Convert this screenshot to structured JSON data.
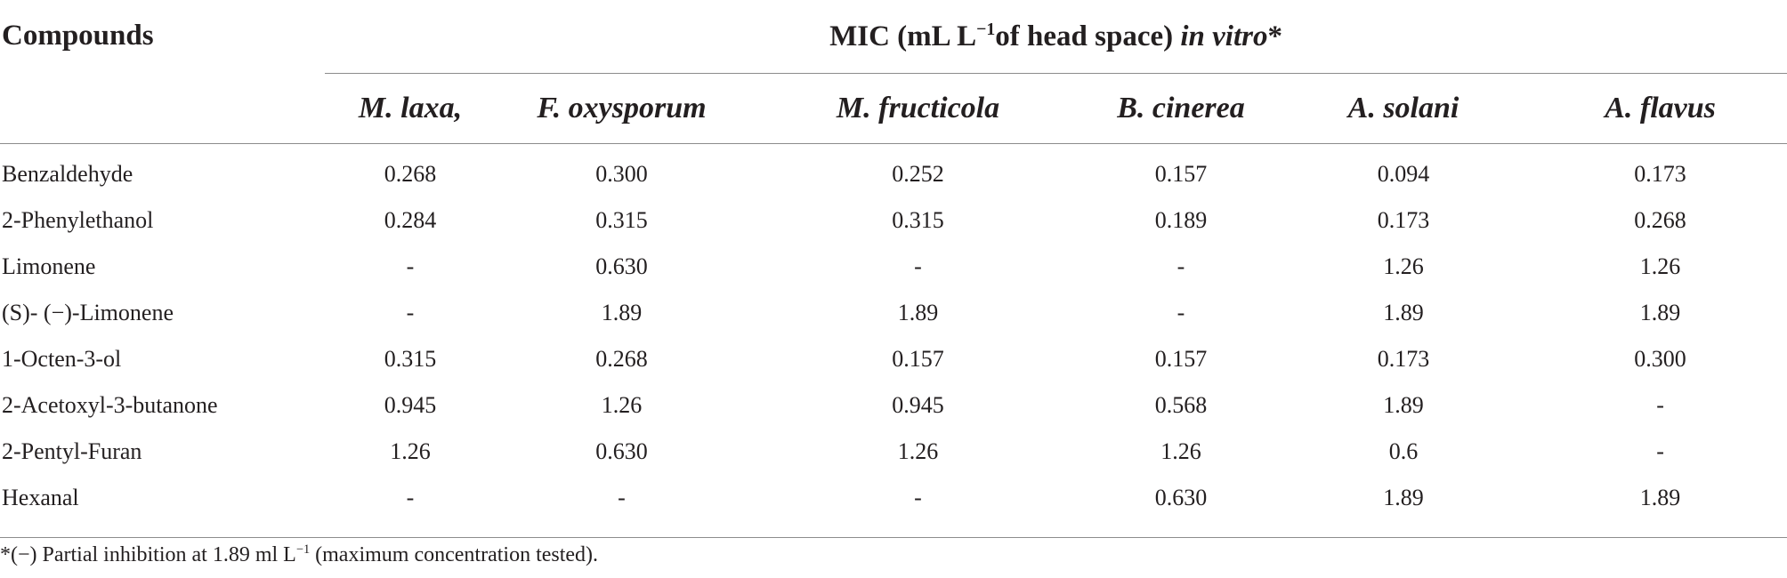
{
  "table": {
    "first_column_header": "Compounds",
    "group_header": {
      "prefix": "MIC (mL L",
      "superscript": "−1",
      "middle": "of head space) ",
      "italic": "in vitro",
      "suffix": "*"
    },
    "columns": [
      "M. laxa,",
      "F. oxysporum",
      "M. fructicola",
      "B. cinerea",
      "A. solani",
      "A. flavus"
    ],
    "rows": [
      {
        "compound": "Benzaldehyde",
        "values": [
          "0.268",
          "0.300",
          "0.252",
          "0.157",
          "0.094",
          "0.173"
        ]
      },
      {
        "compound": "2-Phenylethanol",
        "values": [
          "0.284",
          "0.315",
          "0.315",
          "0.189",
          "0.173",
          "0.268"
        ]
      },
      {
        "compound": "Limonene",
        "values": [
          "-",
          "0.630",
          "-",
          "-",
          "1.26",
          "1.26"
        ]
      },
      {
        "compound": "(S)- (−)-Limonene",
        "values": [
          "-",
          "1.89",
          "1.89",
          "-",
          "1.89",
          "1.89"
        ]
      },
      {
        "compound": "1-Octen-3-ol",
        "values": [
          "0.315",
          "0.268",
          "0.157",
          "0.157",
          "0.173",
          "0.300"
        ]
      },
      {
        "compound": "2-Acetoxyl-3-butanone",
        "values": [
          "0.945",
          "1.26",
          "0.945",
          "0.568",
          "1.89",
          "-"
        ]
      },
      {
        "compound": "2-Pentyl-Furan",
        "values": [
          "1.26",
          "0.630",
          "1.26",
          "1.26",
          "0.6",
          "-"
        ]
      },
      {
        "compound": "Hexanal",
        "values": [
          "-",
          "-",
          "-",
          "0.630",
          "1.89",
          "1.89"
        ]
      }
    ]
  },
  "footnote": {
    "prefix": "*(−) Partial inhibition at 1.89 ml L",
    "superscript": "−1",
    "suffix": " (maximum concentration tested)."
  }
}
